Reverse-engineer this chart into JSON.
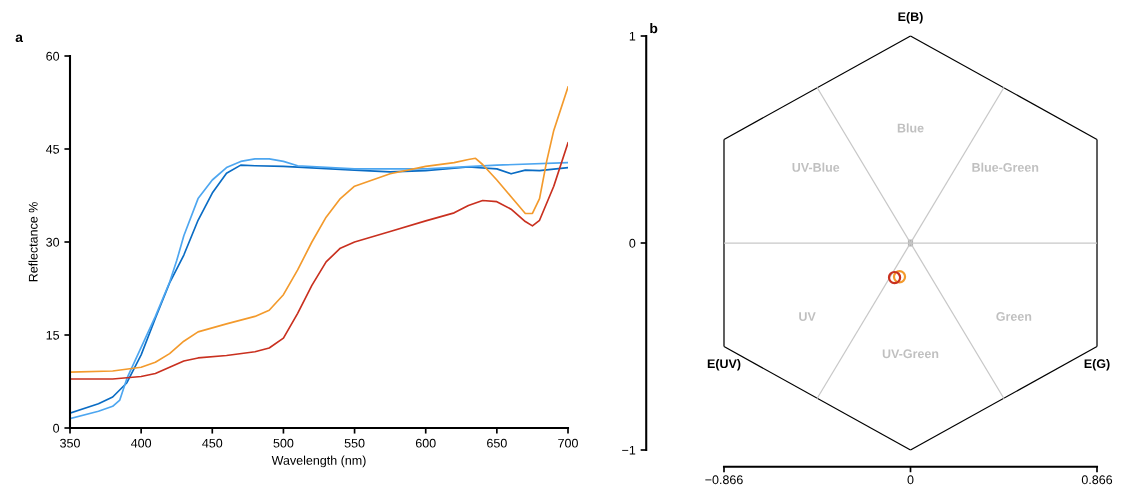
{
  "chart_data": [
    {
      "type": "line",
      "title": "a",
      "xlabel": "Wavelength (nm)",
      "ylabel": "Reflectance %",
      "xlim": [
        350,
        700
      ],
      "xticks": [
        350,
        400,
        450,
        500,
        550,
        600,
        650,
        700
      ],
      "ylim": [
        0,
        60
      ],
      "yticks": [
        0,
        15,
        30,
        45,
        60
      ],
      "grid": false,
      "legend": false,
      "series": [
        {
          "color": "#0a6cc4",
          "x": [
            350,
            370,
            380,
            390,
            400,
            410,
            420,
            430,
            440,
            450,
            460,
            470,
            480,
            500,
            550,
            575,
            600,
            630,
            650,
            660,
            670,
            680,
            700
          ],
          "values": [
            2.4,
            3.9,
            5,
            7.3,
            11.8,
            17.7,
            23.4,
            27.9,
            33.5,
            37.9,
            41.1,
            42.4,
            42.3,
            42.2,
            41.6,
            41.3,
            41.5,
            42.1,
            41.8,
            41.0,
            41.6,
            41.5,
            42.0
          ]
        },
        {
          "color": "#4da6f0",
          "x": [
            350,
            370,
            380,
            385,
            390,
            400,
            410,
            420,
            425,
            430,
            440,
            450,
            460,
            470,
            480,
            490,
            500,
            510,
            550,
            600,
            650,
            700
          ],
          "values": [
            1.5,
            2.7,
            3.5,
            4.5,
            8,
            13,
            18,
            23.5,
            27,
            31,
            37,
            40,
            42,
            43,
            43.4,
            43.4,
            43,
            42.3,
            41.8,
            41.8,
            42.4,
            42.8
          ]
        },
        {
          "color": "#f39a2c",
          "x": [
            350,
            380,
            400,
            410,
            420,
            430,
            440,
            460,
            480,
            490,
            500,
            510,
            520,
            530,
            540,
            550,
            575,
            600,
            620,
            630,
            635,
            640,
            650,
            660,
            670,
            675,
            680,
            685,
            690,
            700
          ],
          "values": [
            9,
            9.2,
            9.8,
            10.6,
            12,
            14,
            15.5,
            16.8,
            18,
            19,
            21.5,
            25.5,
            30,
            34,
            37,
            39,
            41,
            42.2,
            42.8,
            43.3,
            43.5,
            42.5,
            40,
            37.3,
            34.6,
            34.6,
            37,
            43,
            48,
            55
          ]
        },
        {
          "color": "#c9301f",
          "x": [
            350,
            380,
            400,
            410,
            420,
            430,
            440,
            460,
            480,
            490,
            500,
            510,
            520,
            530,
            540,
            550,
            575,
            600,
            620,
            630,
            640,
            650,
            660,
            670,
            675,
            680,
            690,
            700
          ],
          "values": [
            7.9,
            7.9,
            8.3,
            8.8,
            9.8,
            10.8,
            11.3,
            11.7,
            12.3,
            12.9,
            14.5,
            18.5,
            23,
            26.8,
            29,
            30,
            31.7,
            33.4,
            34.7,
            35.9,
            36.7,
            36.5,
            35.3,
            33.3,
            32.6,
            33.5,
            39,
            46
          ]
        }
      ]
    },
    {
      "type": "scatter",
      "title": "b",
      "marker": "circle",
      "xlim": [
        -0.866,
        0.866
      ],
      "xticks": [
        {
          "value": -0.866,
          "label": "−0.866"
        },
        0,
        0.866
      ],
      "ylim": [
        -1,
        1
      ],
      "yticks": [
        {
          "value": -1,
          "label": "−1"
        },
        0,
        1
      ],
      "grid": false,
      "legend": false,
      "series": [
        {
          "type": "line",
          "marker": "none",
          "color": "#c8c8c8",
          "x": [
            -0.866,
            0.866
          ],
          "values": [
            0,
            0
          ]
        },
        {
          "type": "line",
          "marker": "none",
          "color": "#c8c8c8",
          "x": [
            -0.433,
            0.433
          ],
          "values": [
            -0.75,
            0.75
          ]
        },
        {
          "type": "line",
          "marker": "none",
          "color": "#c8c8c8",
          "x": [
            -0.433,
            0.433
          ],
          "values": [
            0.75,
            -0.75
          ]
        },
        {
          "color": "#f39a2c",
          "x": [
            -0.051
          ],
          "values": [
            -0.163
          ]
        },
        {
          "color": "#c9301f",
          "x": [
            -0.074
          ],
          "values": [
            -0.167
          ]
        }
      ],
      "annotations": [
        "E(B)",
        "E(UV)",
        "E(G)",
        "Blue",
        "UV-Blue",
        "Blue-Green",
        "UV",
        "Green",
        "UV-Green"
      ]
    }
  ]
}
